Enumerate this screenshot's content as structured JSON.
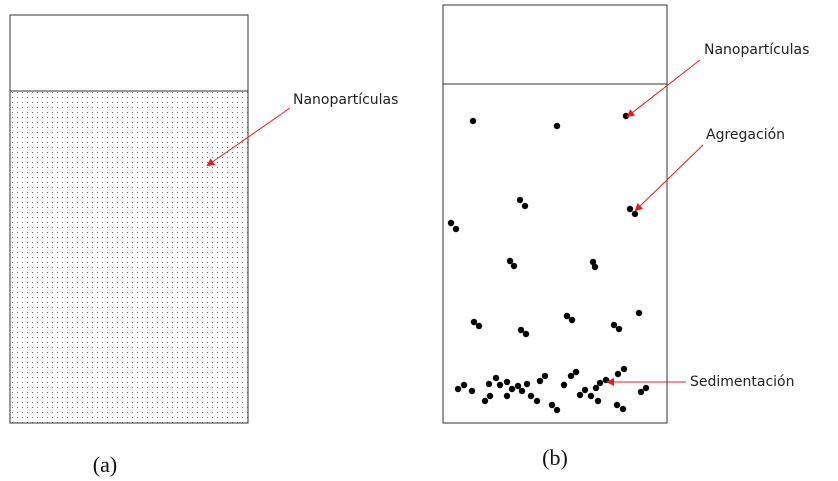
{
  "panel_a": {
    "label": "Nanopartículas",
    "caption": "(a)"
  },
  "panel_b": {
    "labels": [
      "Nanopartículas",
      "Agregación",
      "Sedimentación"
    ],
    "caption": "(b)"
  }
}
